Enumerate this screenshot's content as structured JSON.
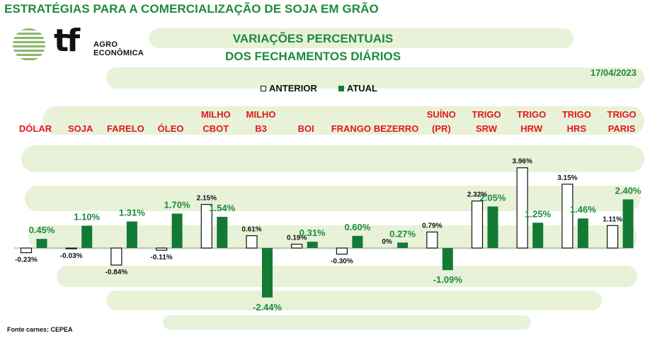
{
  "header": {
    "title": "ESTRATÉGIAS PARA A COMERCIALIZAÇÃO DE SOJA EM GRÃO",
    "subtitle_line1": "VARIAÇÕES PERCENTUAIS",
    "subtitle_line2": "DOS FECHAMENTOS DIÁRIOS",
    "date": "17/04/2023"
  },
  "logo": {
    "brand": "tf",
    "sub": "AGRO\nECONÔMICA",
    "icon": "striped-globe-logo-icon"
  },
  "legend": {
    "previous": "ANTERIOR",
    "current": "ATUAL"
  },
  "footer": {
    "source": "Fonte carnes: CEPEA"
  },
  "colors": {
    "accent_green": "#1e8a3c",
    "bar_green": "#137a35",
    "label_red": "#e4161f",
    "watermark_green": "#e7f2d9"
  },
  "chart_data": {
    "type": "bar",
    "categories": [
      [
        "DÓLAR"
      ],
      [
        "SOJA"
      ],
      [
        "FARELO"
      ],
      [
        "ÓLEO"
      ],
      [
        "MILHO",
        "CBOT"
      ],
      [
        "MILHO",
        "B3"
      ],
      [
        "BOI"
      ],
      [
        "FRANGO"
      ],
      [
        "BEZERRO"
      ],
      [
        "SUÍNO",
        "(PR)"
      ],
      [
        "TRIGO",
        "SRW"
      ],
      [
        "TRIGO",
        "HRW"
      ],
      [
        "TRIGO",
        "HRS"
      ],
      [
        "TRIGO",
        "PARIS"
      ]
    ],
    "series": [
      {
        "name": "ANTERIOR",
        "values": [
          -0.23,
          -0.03,
          -0.84,
          -0.11,
          2.15,
          0.61,
          0.19,
          -0.3,
          0,
          0.79,
          2.32,
          3.96,
          3.15,
          1.11
        ],
        "labels": [
          "-0.23%",
          "-0.03%",
          "-0.84%",
          "-0.11%",
          "2.15%",
          "0.61%",
          "0.19%",
          "-0.30%",
          "0%",
          "0.79%",
          "2.32%",
          "3.96%",
          "3.15%",
          "1.11%"
        ]
      },
      {
        "name": "ATUAL",
        "values": [
          0.45,
          1.1,
          1.31,
          1.7,
          1.54,
          -2.44,
          0.31,
          0.6,
          0.27,
          -1.09,
          2.05,
          1.25,
          1.46,
          2.4
        ],
        "labels": [
          "0.45%",
          "1.10%",
          "1.31%",
          "1.70%",
          "1.54%",
          "-2.44%",
          "0.31%",
          "0.60%",
          "0.27%",
          "-1.09%",
          "2.05%",
          "1.25%",
          "1.46%",
          "2.40%"
        ]
      }
    ],
    "ylim": [
      -2.5,
      4.1
    ],
    "grid": false,
    "legend_position": "top-center"
  }
}
